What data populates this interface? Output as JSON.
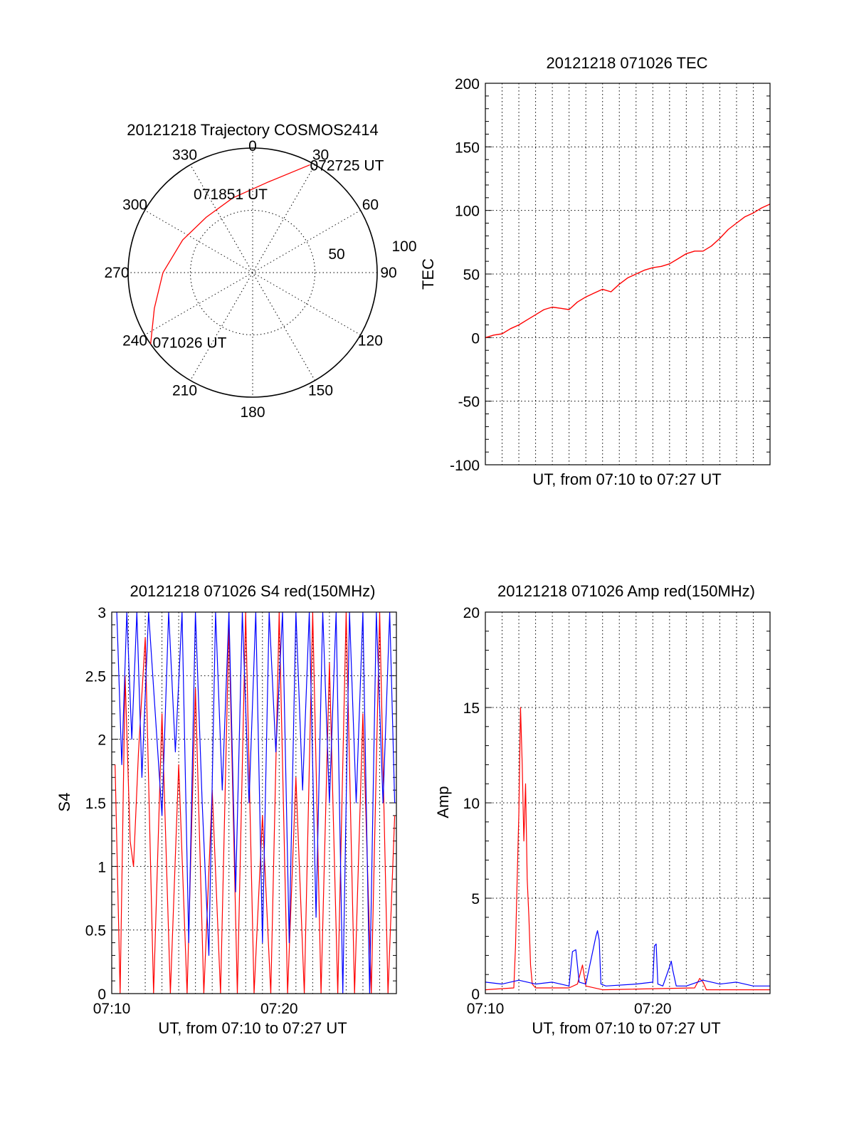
{
  "chart_data": [
    {
      "type": "scatter",
      "title": "20121218 Trajectory COSMOS2414",
      "projection": "polar",
      "azimuth_labels": [
        "0",
        "30",
        "60",
        "90",
        "120",
        "150",
        "180",
        "210",
        "240",
        "270",
        "300",
        "330"
      ],
      "radial_labels": [
        "50",
        "100"
      ],
      "radial_range": [
        0,
        100
      ],
      "grid": true,
      "series": [
        {
          "color": "#ff0000",
          "points": [
            {
              "az": 235,
              "el": 100
            },
            {
              "az": 250,
              "el": 84
            },
            {
              "az": 270,
              "el": 72
            },
            {
              "az": 295,
              "el": 62
            },
            {
              "az": 320,
              "el": 58
            },
            {
              "az": 345,
              "el": 62
            },
            {
              "az": 10,
              "el": 74
            },
            {
              "az": 28,
              "el": 98
            }
          ]
        }
      ],
      "annotations": [
        {
          "text": "072725 UT",
          "az": 28,
          "el": 98
        },
        {
          "text": "071851 UT",
          "az": 338,
          "el": 35
        },
        {
          "text": "071026 UT",
          "az": 235,
          "el": 98
        }
      ]
    },
    {
      "type": "line",
      "title": "20121218 071026 TEC",
      "xlabel": "UT, from 07:10 to 07:27 UT",
      "ylabel": "TEC",
      "xlim": [
        0,
        17
      ],
      "ylim": [
        -100,
        200
      ],
      "y_ticks": [
        "-100",
        "-50",
        "0",
        "50",
        "100",
        "150",
        "200"
      ],
      "grid": true,
      "series": [
        {
          "color": "#ff0000",
          "x": [
            0,
            0.5,
            1,
            1.5,
            2,
            2.5,
            3,
            3.5,
            4,
            4.5,
            5,
            5.5,
            6,
            6.5,
            7,
            7.5,
            8,
            8.5,
            9,
            9.5,
            10,
            10.5,
            11,
            11.5,
            12,
            12.5,
            13,
            13.5,
            14,
            14.5,
            15,
            15.5,
            16,
            16.5,
            17
          ],
          "y": [
            0,
            2,
            3,
            7,
            10,
            14,
            18,
            22,
            24,
            23,
            22,
            28,
            32,
            35,
            38,
            36,
            42,
            47,
            50,
            53,
            55,
            56,
            58,
            62,
            66,
            68,
            68,
            72,
            78,
            85,
            90,
            95,
            98,
            102,
            105
          ]
        }
      ]
    },
    {
      "type": "line",
      "title": "20121218 071026 S4 red(150MHz)",
      "xlabel": "UT, from 07:10 to 07:27 UT",
      "ylabel": "S4",
      "xlim": [
        0,
        17
      ],
      "ylim": [
        0,
        3
      ],
      "x_ticks": [
        "07:10",
        "07:20"
      ],
      "x_tick_values": [
        0,
        10
      ],
      "y_ticks": [
        "0",
        "0.5",
        "1",
        "1.5",
        "2",
        "2.5",
        "3"
      ],
      "grid": true,
      "series": [
        {
          "color": "#ff0000",
          "x": [
            0.2,
            0.5,
            0.8,
            1.1,
            1.3,
            1.6,
            2.0,
            2.5,
            3.0,
            3.5,
            4.0,
            4.5,
            5.0,
            5.5,
            6.0,
            6.5,
            7.0,
            7.5,
            8.0,
            8.5,
            9.0,
            9.5,
            10.0,
            10.5,
            11.0,
            11.5,
            12.0,
            12.5,
            13.0,
            13.5,
            14.0,
            14.5,
            15.0,
            15.5,
            16.0,
            16.5,
            16.9
          ],
          "y": [
            1.8,
            0.0,
            2.5,
            1.2,
            1.0,
            1.9,
            2.8,
            0.0,
            2.2,
            0.0,
            1.8,
            0.0,
            2.4,
            0.0,
            1.6,
            0.0,
            2.9,
            0.0,
            3.0,
            0.0,
            1.4,
            0.0,
            3.0,
            0.0,
            1.7,
            0.0,
            3.0,
            0.0,
            2.6,
            0.0,
            3.0,
            0.0,
            2.2,
            0.0,
            3.0,
            0.0,
            1.4
          ]
        },
        {
          "color": "#0000ff",
          "x": [
            0.3,
            0.6,
            0.9,
            1.2,
            1.5,
            1.8,
            2.2,
            2.6,
            3.0,
            3.4,
            3.8,
            4.2,
            4.6,
            5.0,
            5.4,
            5.8,
            6.2,
            6.6,
            7.0,
            7.4,
            7.8,
            8.2,
            8.6,
            9.0,
            9.4,
            9.8,
            10.2,
            10.6,
            11.0,
            11.4,
            11.8,
            12.2,
            12.6,
            13.0,
            13.4,
            13.8,
            14.2,
            14.6,
            15.0,
            15.4,
            15.8,
            16.2,
            16.6,
            16.9
          ],
          "y": [
            3.0,
            1.8,
            3.0,
            2.0,
            3.0,
            1.7,
            3.0,
            2.2,
            1.4,
            3.0,
            1.9,
            3.0,
            0.4,
            3.0,
            1.5,
            0.3,
            3.0,
            1.6,
            3.0,
            0.8,
            3.0,
            1.5,
            3.0,
            0.4,
            3.0,
            1.9,
            3.0,
            0.4,
            3.0,
            1.6,
            3.0,
            0.6,
            3.0,
            1.5,
            3.0,
            0.0,
            3.0,
            1.5,
            3.0,
            0.0,
            3.0,
            1.5,
            3.0,
            1.5
          ]
        }
      ]
    },
    {
      "type": "line",
      "title": "20121218 071026 Amp red(150MHz)",
      "xlabel": "UT, from 07:10 to 07:27 UT",
      "ylabel": "Amp",
      "xlim": [
        0,
        17
      ],
      "ylim": [
        0,
        20
      ],
      "x_ticks": [
        "07:10",
        "07:20"
      ],
      "x_tick_values": [
        0,
        10
      ],
      "y_ticks": [
        "0",
        "5",
        "10",
        "15",
        "20"
      ],
      "grid": true,
      "series": [
        {
          "color": "#ff0000",
          "x": [
            0,
            1.7,
            1.8,
            1.9,
            2.0,
            2.1,
            2.2,
            2.3,
            2.4,
            2.5,
            2.6,
            2.7,
            2.8,
            3.0,
            5.0,
            5.5,
            5.8,
            6.0,
            7.0,
            12.5,
            12.8,
            13.0,
            13.2,
            17
          ],
          "y": [
            0.2,
            0.3,
            2.5,
            6.0,
            9.5,
            15.0,
            12.0,
            8.0,
            11.0,
            6.0,
            4.0,
            1.5,
            0.5,
            0.3,
            0.3,
            0.5,
            1.5,
            0.4,
            0.2,
            0.3,
            0.8,
            0.6,
            0.2,
            0.2
          ]
        },
        {
          "color": "#0000ff",
          "x": [
            0,
            1.0,
            2.0,
            3.0,
            4.0,
            5.0,
            5.2,
            5.4,
            5.6,
            6.0,
            6.6,
            6.7,
            6.8,
            6.9,
            7.2,
            9.0,
            10.0,
            10.1,
            10.2,
            10.3,
            10.6,
            11.0,
            11.1,
            11.2,
            11.4,
            12.0,
            13.0,
            14.0,
            15.0,
            16.0,
            17.0
          ],
          "y": [
            0.6,
            0.5,
            0.7,
            0.5,
            0.6,
            0.4,
            2.2,
            2.3,
            0.6,
            0.5,
            3.0,
            3.3,
            2.8,
            0.5,
            0.4,
            0.5,
            0.6,
            2.5,
            2.6,
            0.5,
            0.4,
            1.4,
            1.7,
            1.2,
            0.4,
            0.4,
            0.7,
            0.5,
            0.6,
            0.4,
            0.4
          ]
        }
      ]
    }
  ]
}
